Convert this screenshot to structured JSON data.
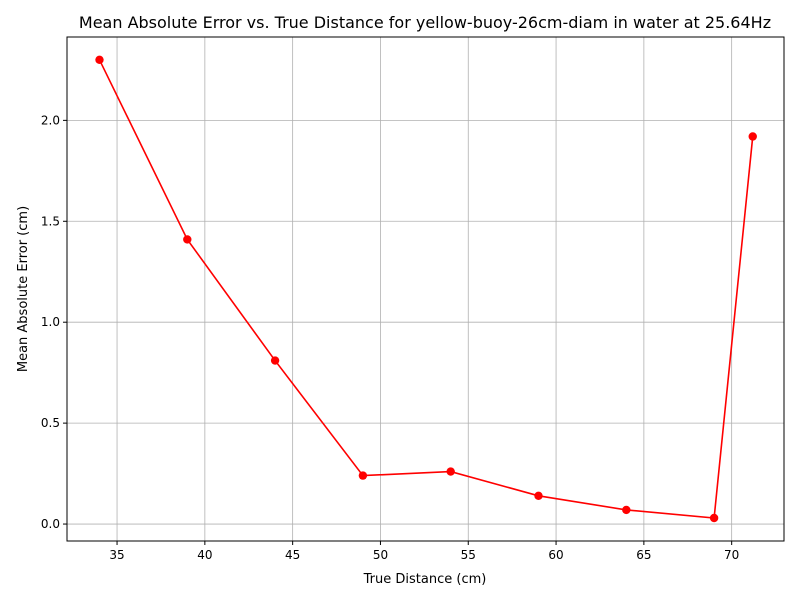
{
  "chart_data": {
    "type": "line",
    "title": "Mean Absolute Error vs. True Distance for yellow-buoy-26cm-diam in water at 25.64Hz",
    "xlabel": "True Distance (cm)",
    "ylabel": "Mean Absolute Error (cm)",
    "xlim": [
      32.15,
      72.98
    ],
    "ylim": [
      -0.084,
      2.413
    ],
    "x_ticks": [
      35,
      40,
      45,
      50,
      55,
      60,
      65,
      70
    ],
    "y_ticks": [
      0.0,
      0.5,
      1.0,
      1.5,
      2.0
    ],
    "x_tick_labels": [
      "35",
      "40",
      "45",
      "50",
      "55",
      "60",
      "65",
      "70"
    ],
    "y_tick_labels": [
      "0.0",
      "0.5",
      "1.0",
      "1.5",
      "2.0"
    ],
    "grid": true,
    "color": "#ff0000",
    "marker": "circle",
    "series": [
      {
        "x": [
          34,
          39,
          44,
          49,
          54,
          59,
          64,
          69,
          71.2
        ],
        "values": [
          2.3,
          1.41,
          0.81,
          0.24,
          0.26,
          0.14,
          0.07,
          0.03,
          1.92
        ]
      }
    ]
  }
}
